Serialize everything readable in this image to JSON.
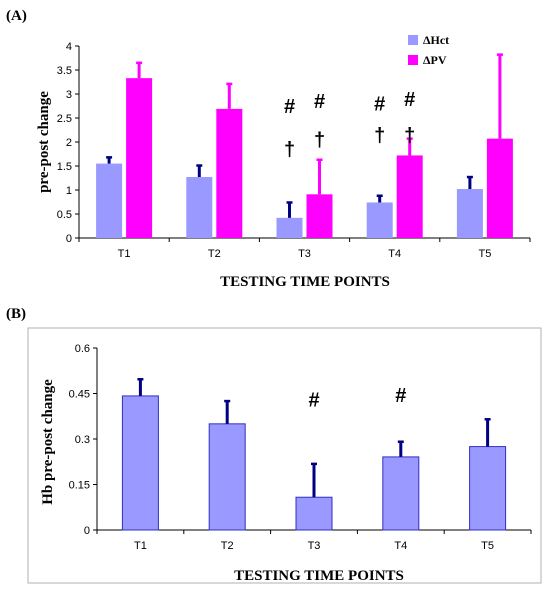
{
  "chart_data": [
    {
      "panel": "(A)",
      "type": "bar",
      "categories": [
        "T1",
        "T2",
        "T3",
        "T4",
        "T5"
      ],
      "xlabel": "TESTING TIME POINTS",
      "ylabel": "pre-post change",
      "ylim": [
        0,
        4
      ],
      "yticks": [
        "0",
        "0.5",
        "1",
        "1.5",
        "2",
        "2.5",
        "3",
        "3.5",
        "4"
      ],
      "legend_position": "top-right",
      "series": [
        {
          "name": "ΔHct",
          "color": "#9999ff",
          "errcolor": "#000080",
          "values": [
            1.55,
            1.27,
            0.42,
            0.74,
            1.02
          ],
          "errors": [
            0.13,
            0.24,
            0.32,
            0.14,
            0.25
          ]
        },
        {
          "name": "ΔPV",
          "color": "#ff00ff",
          "errcolor": "#ff00ff",
          "values": [
            3.33,
            2.69,
            0.91,
            1.72,
            2.07
          ],
          "errors": [
            0.32,
            0.52,
            0.72,
            0.35,
            1.75
          ]
        }
      ],
      "annotations": [
        {
          "text": "#",
          "category": "T3",
          "series": "ΔHct",
          "y": 2.75
        },
        {
          "text": "†",
          "category": "T3",
          "series": "ΔHct",
          "y": 1.85
        },
        {
          "text": "#",
          "category": "T3",
          "series": "ΔPV",
          "y": 2.85
        },
        {
          "text": "†",
          "category": "T3",
          "series": "ΔPV",
          "y": 2.05
        },
        {
          "text": "#",
          "category": "T4",
          "series": "ΔHct",
          "y": 2.8
        },
        {
          "text": "†",
          "category": "T4",
          "series": "ΔHct",
          "y": 2.15
        },
        {
          "text": "#",
          "category": "T4",
          "series": "ΔPV",
          "y": 2.9
        },
        {
          "text": "†",
          "category": "T4",
          "series": "ΔPV",
          "y": 2.15
        }
      ]
    },
    {
      "panel": "(B)",
      "type": "bar",
      "categories": [
        "T1",
        "T2",
        "T3",
        "T4",
        "T5"
      ],
      "xlabel": "TESTING TIME POINTS",
      "ylabel": "Hb pre-post change",
      "ylim": [
        0,
        0.6
      ],
      "yticks": [
        "0",
        "0.15",
        "0.3",
        "0.45",
        "0.6"
      ],
      "series": [
        {
          "name": "",
          "color": "#9999ff",
          "errcolor": "#000080",
          "values": [
            0.442,
            0.35,
            0.108,
            0.241,
            0.275
          ],
          "errors": [
            0.055,
            0.075,
            0.11,
            0.05,
            0.09
          ]
        }
      ],
      "annotations": [
        {
          "text": "#",
          "category": "T3",
          "y": 0.43
        },
        {
          "text": "#",
          "category": "T4",
          "y": 0.445
        }
      ]
    }
  ]
}
